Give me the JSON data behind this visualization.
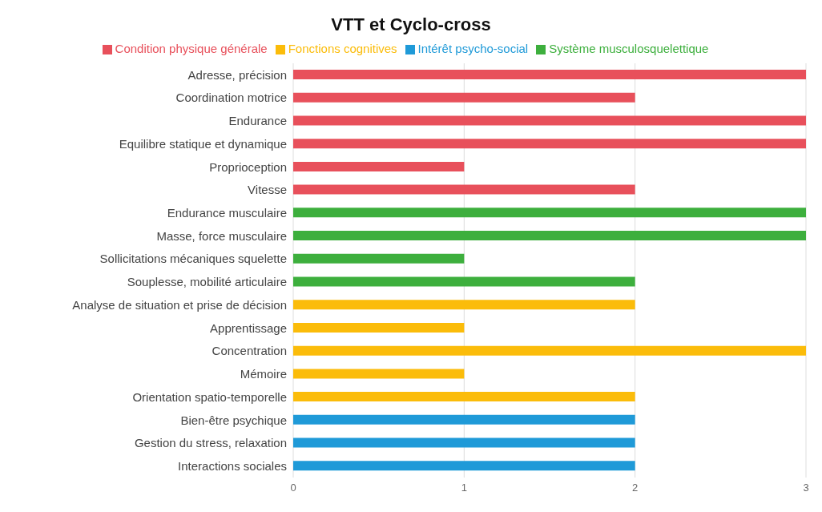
{
  "chart_data": {
    "type": "bar",
    "title": "VTT et Cyclo-cross",
    "orientation": "horizontal",
    "stacked": true,
    "categories": [
      "Adresse, précision",
      "Coordination motrice",
      "Endurance",
      "Equilibre statique et dynamique",
      "Proprioception",
      "Vitesse",
      "Endurance musculaire",
      "Masse, force musculaire",
      "Sollicitations mécaniques squelette",
      "Souplesse, mobilité articulaire",
      "Analyse de situation et prise de décision",
      "Apprentissage",
      "Concentration",
      "Mémoire",
      "Orientation spatio-temporelle",
      "Bien-être psychique",
      "Gestion du stress, relaxation",
      "Interactions sociales"
    ],
    "series": [
      {
        "name": "Condition physique générale",
        "color": "#e8505b",
        "values": [
          3,
          2,
          3,
          3,
          1,
          2,
          null,
          null,
          null,
          null,
          null,
          null,
          null,
          null,
          null,
          null,
          null,
          null
        ]
      },
      {
        "name": "Système musculosquelettique",
        "color": "#3daf3d",
        "values": [
          null,
          null,
          null,
          null,
          null,
          null,
          3,
          3,
          1,
          2,
          null,
          null,
          null,
          null,
          null,
          null,
          null,
          null
        ]
      },
      {
        "name": "Fonctions cognitives",
        "color": "#fbbc0a",
        "values": [
          null,
          null,
          null,
          null,
          null,
          null,
          null,
          null,
          null,
          null,
          2,
          1,
          3,
          1,
          2,
          null,
          null,
          null
        ]
      },
      {
        "name": "Intérêt psycho-social",
        "color": "#1f9ad8",
        "values": [
          null,
          null,
          null,
          null,
          null,
          null,
          null,
          null,
          null,
          null,
          null,
          null,
          null,
          null,
          null,
          2,
          2,
          2
        ]
      }
    ],
    "xlim": [
      0,
      3
    ],
    "xticks": [
      0,
      1,
      2,
      3
    ],
    "grid": "x",
    "legend": "top"
  }
}
